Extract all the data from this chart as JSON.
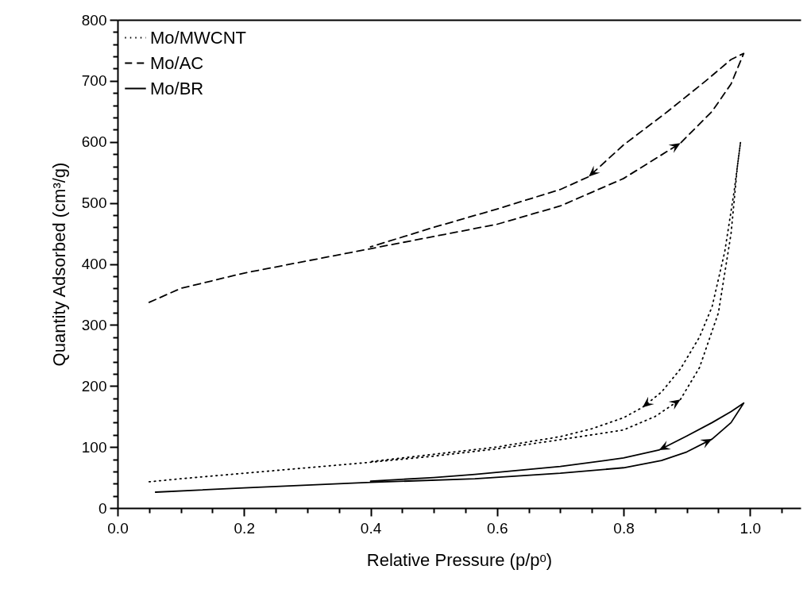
{
  "chart_data": {
    "type": "line",
    "xlabel": "Relative Pressure (p/pᵒ)",
    "ylabel": "Quantity Adsorbed (cm³/g)",
    "xlim": [
      0,
      1.08
    ],
    "ylim": [
      0,
      800
    ],
    "xticks": [
      {
        "value": 0,
        "label": "0.0"
      },
      {
        "value": 0.05,
        "label": null
      },
      {
        "value": 0.1,
        "label": null
      },
      {
        "value": 0.15,
        "label": null
      },
      0.2,
      {
        "value": 0.25,
        "label": null
      },
      {
        "value": 0.3,
        "label": null
      },
      {
        "value": 0.35,
        "label": null
      },
      0.4,
      {
        "value": 0.45,
        "label": null
      },
      {
        "value": 0.5,
        "label": null
      },
      {
        "value": 0.55,
        "label": null
      },
      0.6,
      {
        "value": 0.65,
        "label": null
      },
      {
        "value": 0.7,
        "label": null
      },
      {
        "value": 0.75,
        "label": null
      },
      0.8,
      {
        "value": 0.85,
        "label": null
      },
      {
        "value": 0.9,
        "label": null
      },
      {
        "value": 0.95,
        "label": null
      },
      {
        "value": 1,
        "label": "1.0"
      },
      {
        "value": 1.05,
        "label": null
      }
    ],
    "yticks": [
      0,
      {
        "value": 20,
        "label": null
      },
      {
        "value": 40,
        "label": null
      },
      {
        "value": 60,
        "label": null
      },
      {
        "value": 80,
        "label": null
      },
      100,
      {
        "value": 120,
        "label": null
      },
      {
        "value": 140,
        "label": null
      },
      {
        "value": 160,
        "label": null
      },
      {
        "value": 180,
        "label": null
      },
      200,
      {
        "value": 220,
        "label": null
      },
      {
        "value": 240,
        "label": null
      },
      {
        "value": 260,
        "label": null
      },
      {
        "value": 280,
        "label": null
      },
      300,
      {
        "value": 320,
        "label": null
      },
      {
        "value": 340,
        "label": null
      },
      {
        "value": 360,
        "label": null
      },
      {
        "value": 380,
        "label": null
      },
      400,
      {
        "value": 420,
        "label": null
      },
      {
        "value": 440,
        "label": null
      },
      {
        "value": 460,
        "label": null
      },
      {
        "value": 480,
        "label": null
      },
      500,
      {
        "value": 520,
        "label": null
      },
      {
        "value": 540,
        "label": null
      },
      {
        "value": 560,
        "label": null
      },
      {
        "value": 580,
        "label": null
      },
      600,
      {
        "value": 620,
        "label": null
      },
      {
        "value": 640,
        "label": null
      },
      {
        "value": 660,
        "label": null
      },
      {
        "value": 680,
        "label": null
      },
      700,
      {
        "value": 720,
        "label": null
      },
      {
        "value": 740,
        "label": null
      },
      {
        "value": 760,
        "label": null
      },
      {
        "value": 780,
        "label": null
      },
      800
    ],
    "grid": false,
    "legend": "top left",
    "marker": "none",
    "series": [
      {
        "name": "Mo/MWCNT",
        "color": "#000000",
        "line_style": "dotted",
        "x": [
          0.05,
          0.1,
          0.2,
          0.3,
          0.4,
          0.5,
          0.6,
          0.7,
          0.8,
          0.85,
          0.89,
          0.92,
          0.95,
          0.97,
          0.98,
          0.985,
          0.975,
          0.96,
          0.94,
          0.92,
          0.89,
          0.86,
          0.83,
          0.8,
          0.75,
          0.7,
          0.6,
          0.5,
          0.4
        ],
        "values": [
          43,
          48,
          57,
          66,
          75,
          85,
          97,
          112,
          128,
          150,
          178,
          230,
          320,
          450,
          560,
          600,
          520,
          420,
          330,
          280,
          228,
          190,
          165,
          148,
          130,
          117,
          100,
          88,
          76
        ]
      },
      {
        "name": "Mo/AC",
        "color": "#000000",
        "line_style": "dashed",
        "x": [
          0.05,
          0.1,
          0.2,
          0.3,
          0.4,
          0.5,
          0.6,
          0.7,
          0.8,
          0.89,
          0.94,
          0.97,
          0.99,
          0.97,
          0.93,
          0.87,
          0.8,
          0.745,
          0.7,
          0.6,
          0.5,
          0.4
        ],
        "values": [
          337,
          360,
          385,
          405,
          425,
          445,
          465,
          495,
          540,
          598,
          650,
          695,
          745,
          735,
          700,
          650,
          595,
          543,
          522,
          490,
          460,
          428
        ]
      },
      {
        "name": "Mo/BR",
        "color": "#000000",
        "line_style": "solid",
        "x": [
          0.06,
          0.2,
          0.4,
          0.565,
          0.7,
          0.8,
          0.86,
          0.9,
          0.94,
          0.97,
          0.99,
          0.97,
          0.94,
          0.9,
          0.856,
          0.8,
          0.7,
          0.565,
          0.5,
          0.4
        ],
        "values": [
          26,
          33,
          42,
          48,
          57,
          66,
          78,
          92,
          113,
          140,
          172,
          158,
          140,
          118,
          95,
          82,
          68,
          55,
          50,
          44
        ]
      }
    ]
  }
}
